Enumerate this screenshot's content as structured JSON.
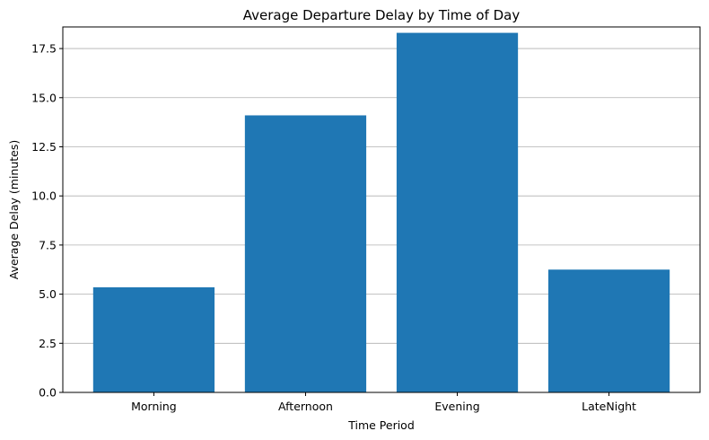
{
  "chart_data": {
    "type": "bar",
    "title": "Average Departure Delay by Time of Day",
    "xlabel": "Time Period",
    "ylabel": "Average Delay (minutes)",
    "categories": [
      "Morning",
      "Afternoon",
      "Evening",
      "LateNight"
    ],
    "values": [
      5.35,
      14.1,
      18.3,
      6.25
    ],
    "ylim": [
      0,
      18.6
    ],
    "yticks": [
      "0.0",
      "2.5",
      "5.0",
      "7.5",
      "10.0",
      "12.5",
      "15.0",
      "17.5"
    ],
    "grid": "y-axis only",
    "bar_color": "#1f77b4"
  }
}
